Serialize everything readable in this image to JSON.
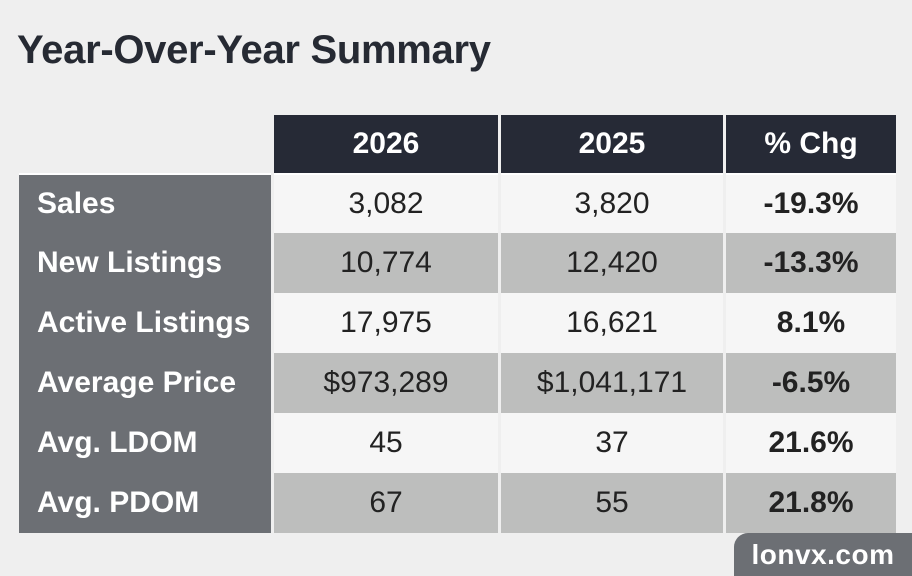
{
  "title": "Year-Over-Year Summary",
  "table": {
    "headers": [
      "2026",
      "2025",
      "% Chg"
    ],
    "rows": [
      {
        "label": "Sales",
        "y2026": "3,082",
        "y2025": "3,820",
        "chg": "-19.3%"
      },
      {
        "label": "New Listings",
        "y2026": "10,774",
        "y2025": "12,420",
        "chg": "-13.3%"
      },
      {
        "label": "Active Listings",
        "y2026": "17,975",
        "y2025": "16,621",
        "chg": "8.1%"
      },
      {
        "label": "Average Price",
        "y2026": "$973,289",
        "y2025": "$1,041,171",
        "chg": "-6.5%"
      },
      {
        "label": "Avg. LDOM",
        "y2026": "45",
        "y2025": "37",
        "chg": "21.6%"
      },
      {
        "label": "Avg. PDOM",
        "y2026": "67",
        "y2025": "55",
        "chg": "21.8%"
      }
    ]
  },
  "brand": "lonvx.com",
  "colors": {
    "header_bg": "#262a36",
    "label_bg": "#6c6f74",
    "row_light": "#f6f6f6",
    "row_dark": "#bdbebd"
  }
}
